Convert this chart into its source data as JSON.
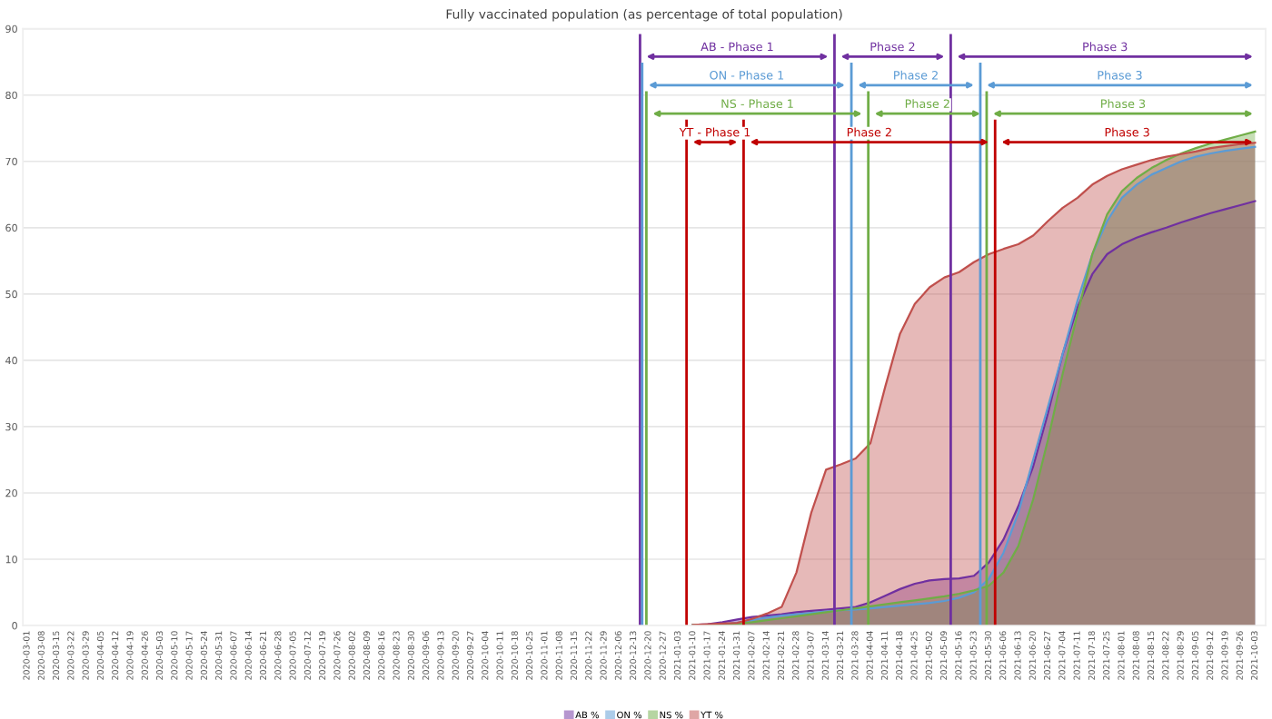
{
  "chart_data": {
    "type": "area",
    "title": "Fully vaccinated population (as percentage of total population)",
    "x": [
      "2021-01-10",
      "2021-01-17",
      "2021-01-24",
      "2021-01-31",
      "2021-02-07",
      "2021-02-14",
      "2021-02-21",
      "2021-02-28",
      "2021-03-07",
      "2021-03-14",
      "2021-03-21",
      "2021-03-28",
      "2021-04-04",
      "2021-04-11",
      "2021-04-18",
      "2021-04-25",
      "2021-05-02",
      "2021-05-09",
      "2021-05-16",
      "2021-05-23",
      "2021-05-30",
      "2021-06-06",
      "2021-06-13",
      "2021-06-20",
      "2021-06-27",
      "2021-07-04",
      "2021-07-11",
      "2021-07-18",
      "2021-07-25",
      "2021-08-01",
      "2021-08-08",
      "2021-08-15",
      "2021-08-22",
      "2021-08-29",
      "2021-09-05",
      "2021-09-12",
      "2021-09-19",
      "2021-09-26",
      "2021-10-03"
    ],
    "series": [
      {
        "name": "AB %",
        "color": "#7030a0",
        "values": [
          0.1,
          0.2,
          0.5,
          0.9,
          1.3,
          1.5,
          1.7,
          2,
          2.2,
          2.4,
          2.6,
          2.8,
          3.5,
          4.5,
          5.5,
          6.3,
          6.8,
          7,
          7.1,
          7.5,
          9.5,
          13,
          18,
          24,
          32,
          41,
          48,
          53,
          56,
          57.5,
          58.5,
          59.3,
          60,
          60.8,
          61.5,
          62.2,
          62.8,
          63.4,
          64
        ]
      },
      {
        "name": "ON %",
        "color": "#5b9bd5",
        "values": [
          0.1,
          0.1,
          0.2,
          0.4,
          0.8,
          1.2,
          1.5,
          1.7,
          1.9,
          2.1,
          2.3,
          2.4,
          2.6,
          2.8,
          3,
          3.2,
          3.4,
          3.7,
          4.2,
          5,
          7,
          11,
          17,
          25,
          33,
          41,
          49,
          56,
          61,
          64.5,
          66.5,
          68,
          69,
          70,
          70.7,
          71.2,
          71.6,
          71.9,
          72.2
        ]
      },
      {
        "name": "NS %",
        "color": "#70ad47",
        "values": [
          0.1,
          0.1,
          0.2,
          0.3,
          0.5,
          0.8,
          1.1,
          1.4,
          1.7,
          2,
          2.3,
          2.6,
          2.9,
          3.2,
          3.5,
          3.8,
          4.1,
          4.4,
          4.8,
          5.3,
          6,
          8,
          12,
          19,
          28,
          38,
          47,
          56,
          62,
          65.5,
          67.5,
          69,
          70.2,
          71.2,
          72,
          72.7,
          73.3,
          73.9,
          74.5
        ]
      },
      {
        "name": "YT %",
        "color": "#c0504d",
        "values": [
          0.1,
          0.2,
          0.3,
          0.4,
          1,
          1.8,
          2.8,
          8,
          17,
          23.5,
          24.3,
          25.2,
          27.5,
          36,
          44,
          48.5,
          51,
          52.5,
          53.3,
          54.8,
          56,
          56.8,
          57.5,
          58.8,
          61,
          63,
          64.5,
          66.5,
          67.8,
          68.8,
          69.5,
          70.2,
          70.7,
          71.1,
          71.5,
          72,
          72.3,
          72.6,
          72.8
        ]
      }
    ],
    "xlim": [
      "2020-02-28",
      "2021-10-08"
    ],
    "xticks": [
      "2020-03-01",
      "2020-03-08",
      "2020-03-15",
      "2020-03-22",
      "2020-03-29",
      "2020-04-05",
      "2020-04-12",
      "2020-04-19",
      "2020-04-26",
      "2020-05-03",
      "2020-05-10",
      "2020-05-17",
      "2020-05-24",
      "2020-05-31",
      "2020-06-07",
      "2020-06-14",
      "2020-06-21",
      "2020-06-28",
      "2020-07-05",
      "2020-07-12",
      "2020-07-19",
      "2020-07-26",
      "2020-08-02",
      "2020-08-09",
      "2020-08-16",
      "2020-08-23",
      "2020-08-30",
      "2020-09-06",
      "2020-09-13",
      "2020-09-20",
      "2020-09-27",
      "2020-10-04",
      "2020-10-11",
      "2020-10-18",
      "2020-10-25",
      "2020-11-01",
      "2020-11-08",
      "2020-11-15",
      "2020-11-22",
      "2020-11-29",
      "2020-12-06",
      "2020-12-13",
      "2020-12-20",
      "2020-12-27",
      "2021-01-03",
      "2021-01-10",
      "2021-01-17",
      "2021-01-24",
      "2021-01-31",
      "2021-02-07",
      "2021-02-14",
      "2021-02-21",
      "2021-02-28",
      "2021-03-07",
      "2021-03-14",
      "2021-03-21",
      "2021-03-28",
      "2021-04-04",
      "2021-04-11",
      "2021-04-18",
      "2021-04-25",
      "2021-05-02",
      "2021-05-09",
      "2021-05-16",
      "2021-05-23",
      "2021-05-30",
      "2021-06-06",
      "2021-06-13",
      "2021-06-20",
      "2021-06-27",
      "2021-07-04",
      "2021-07-11",
      "2021-07-18",
      "2021-07-25",
      "2021-08-01",
      "2021-08-08",
      "2021-08-15",
      "2021-08-22",
      "2021-08-29",
      "2021-09-05",
      "2021-09-12",
      "2021-09-19",
      "2021-09-26",
      "2021-10-03"
    ],
    "ylim": [
      0,
      90
    ],
    "yticks": [
      0,
      10,
      20,
      30,
      40,
      50,
      60,
      70,
      80,
      90
    ],
    "grid": "y",
    "legend": "bottom",
    "ref_lines": [
      {
        "axis": "x",
        "value": "2020-12-16",
        "label": "AB - Phase 1",
        "color": "#7030a0"
      },
      {
        "axis": "x",
        "value": "2021-03-18",
        "label": "Phase 2",
        "color": "#7030a0"
      },
      {
        "axis": "x",
        "value": "2021-05-12",
        "label": "Phase 3",
        "color": "#7030a0"
      },
      {
        "axis": "x",
        "value": "2020-12-17",
        "label": "ON - Phase 1",
        "color": "#5b9bd5"
      },
      {
        "axis": "x",
        "value": "2021-03-26",
        "label": "Phase 2",
        "color": "#5b9bd5"
      },
      {
        "axis": "x",
        "value": "2021-05-26",
        "label": "Phase 3",
        "color": "#5b9bd5"
      },
      {
        "axis": "x",
        "value": "2020-12-19",
        "label": "NS - Phase 1",
        "color": "#70ad47"
      },
      {
        "axis": "x",
        "value": "2021-04-03",
        "label": "Phase 2",
        "color": "#70ad47"
      },
      {
        "axis": "x",
        "value": "2021-05-29",
        "label": "Phase 3",
        "color": "#70ad47"
      },
      {
        "axis": "x",
        "value": "2021-01-07",
        "label": "YT - Phase 1",
        "color": "#c00000"
      },
      {
        "axis": "x",
        "value": "2021-02-03",
        "label": "Phase 2",
        "color": "#c00000"
      },
      {
        "axis": "x",
        "value": "2021-06-02",
        "label": "Phase 3",
        "color": "#c00000"
      }
    ]
  }
}
